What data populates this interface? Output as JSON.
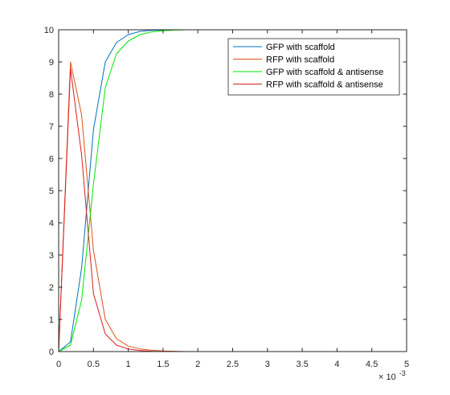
{
  "chart_data": {
    "type": "line",
    "title": "",
    "xlabel": "",
    "ylabel": "",
    "xlim": [
      0,
      0.005
    ],
    "ylim": [
      0,
      10
    ],
    "x_ticks": [
      0,
      0.0005,
      0.001,
      0.0015,
      0.002,
      0.0025,
      0.003,
      0.0035,
      0.004,
      0.0045,
      0.005
    ],
    "x_tick_labels": [
      "0",
      "0.5",
      "1",
      "1.5",
      "2",
      "2.5",
      "3",
      "3.5",
      "4",
      "4.5",
      "5"
    ],
    "x_exponent": {
      "base": "× 10",
      "power": "-3"
    },
    "y_ticks": [
      0,
      1,
      2,
      3,
      4,
      5,
      6,
      7,
      8,
      9,
      10
    ],
    "y_tick_labels": [
      "0",
      "1",
      "2",
      "3",
      "4",
      "5",
      "6",
      "7",
      "8",
      "9",
      "10"
    ],
    "grid": false,
    "legend": "top-right",
    "series": [
      {
        "name": "GFP with scaffold",
        "color": "#0072BD",
        "x": [
          0,
          0.00017,
          0.00033,
          0.0005,
          0.00067,
          0.00083,
          0.001,
          0.00117,
          0.00133,
          0.0015,
          0.00167,
          0.00183,
          0.002,
          0.0025,
          0.003,
          0.0035,
          0.004,
          0.0045,
          0.005
        ],
        "y": [
          0,
          0.3,
          2.6,
          6.9,
          9.0,
          9.6,
          9.85,
          9.95,
          9.98,
          9.99,
          10,
          10,
          10,
          10,
          10,
          10,
          10,
          10,
          10
        ]
      },
      {
        "name": "RFP with scaffold",
        "color": "#D95319",
        "x": [
          0,
          0.00017,
          0.00033,
          0.0005,
          0.00067,
          0.00083,
          0.001,
          0.00117,
          0.00133,
          0.0015,
          0.00167,
          0.00183,
          0.002,
          0.0025,
          0.003,
          0.0035,
          0.004,
          0.0045,
          0.005
        ],
        "y": [
          0,
          9.0,
          7.35,
          3.15,
          1.0,
          0.4,
          0.17,
          0.08,
          0.04,
          0.02,
          0.01,
          0,
          0,
          0,
          0,
          0,
          0,
          0,
          0
        ]
      },
      {
        "name": "GFP with scaffold & antisense",
        "color": "#00E600",
        "x": [
          0,
          0.00017,
          0.00033,
          0.0005,
          0.00067,
          0.00083,
          0.001,
          0.00117,
          0.00133,
          0.0015,
          0.00167,
          0.00183,
          0.002,
          0.0025,
          0.003,
          0.0035,
          0.004,
          0.0045,
          0.005
        ],
        "y": [
          0,
          0.2,
          1.6,
          5.2,
          8.2,
          9.25,
          9.65,
          9.85,
          9.93,
          9.97,
          9.99,
          10,
          10,
          10,
          10,
          10,
          10,
          10,
          10
        ]
      },
      {
        "name": "RFP with scaffold & antisense",
        "color": "#D81E1E",
        "x": [
          0,
          0.00017,
          0.00033,
          0.0005,
          0.00067,
          0.00083,
          0.001,
          0.00117,
          0.00133,
          0.0015,
          0.00167,
          0.00183,
          0.002,
          0.0025,
          0.003,
          0.0035,
          0.004,
          0.0045,
          0.005
        ],
        "y": [
          0,
          8.8,
          6.1,
          1.8,
          0.55,
          0.2,
          0.08,
          0.03,
          0.01,
          0,
          0,
          0,
          0,
          0,
          0,
          0,
          0,
          0,
          0
        ]
      }
    ]
  }
}
